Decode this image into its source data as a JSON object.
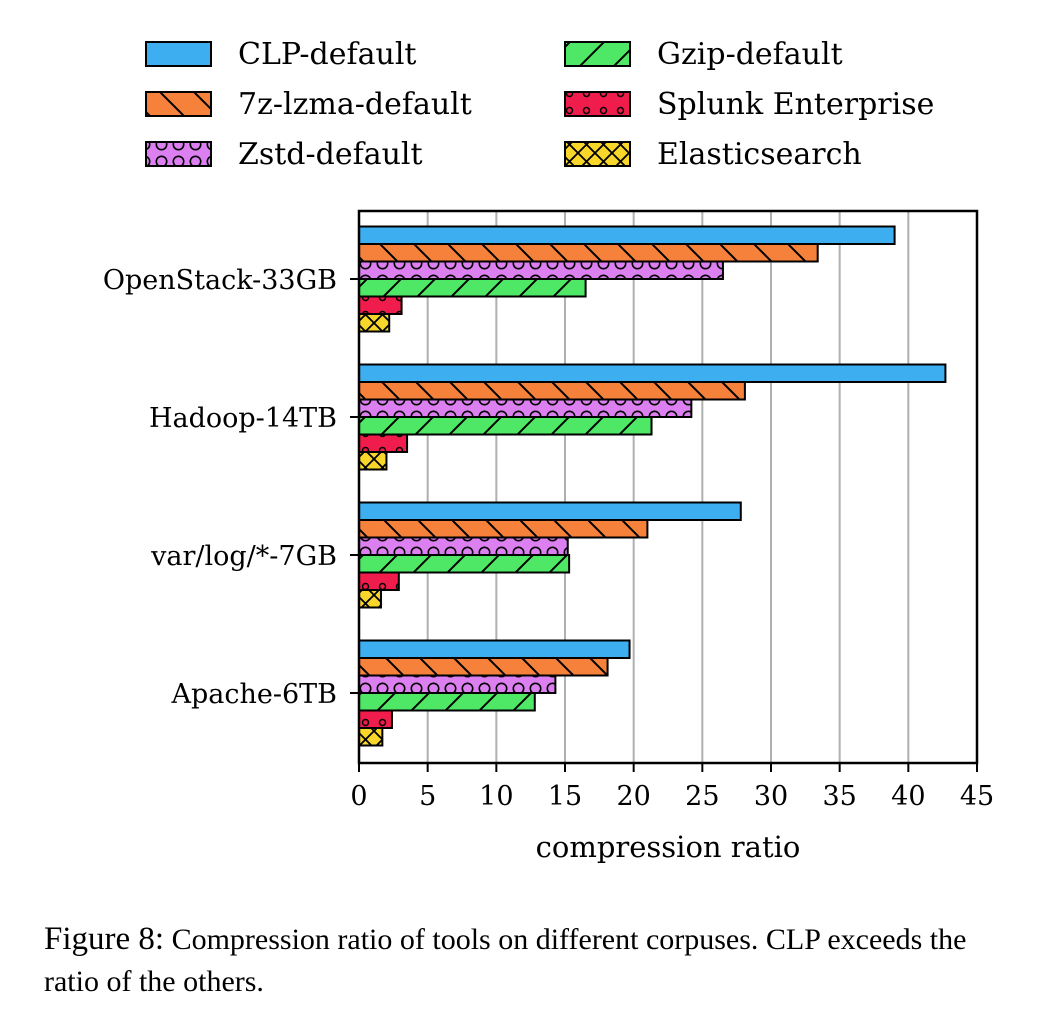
{
  "chart_data": {
    "type": "bar",
    "orientation": "horizontal",
    "categories": [
      "OpenStack-33GB",
      "Hadoop-14TB",
      "var/log/*-7GB",
      "Apache-6TB"
    ],
    "series": [
      {
        "name": "CLP-default",
        "color": "#3daff0",
        "pattern": "none",
        "values": [
          39.0,
          42.7,
          27.8,
          19.7
        ]
      },
      {
        "name": "7z-lzma-default",
        "color": "#f5813a",
        "pattern": "backslash",
        "values": [
          33.4,
          28.1,
          21.0,
          18.1
        ]
      },
      {
        "name": "Zstd-default",
        "color": "#dc7ff0",
        "pattern": "circles",
        "values": [
          26.5,
          24.2,
          15.2,
          14.3
        ]
      },
      {
        "name": "Gzip-default",
        "color": "#4fe866",
        "pattern": "slash",
        "values": [
          16.5,
          21.3,
          15.3,
          12.8
        ]
      },
      {
        "name": "Splunk Enterprise",
        "color": "#f01c4c",
        "pattern": "dots",
        "values": [
          3.1,
          3.5,
          2.9,
          2.4
        ]
      },
      {
        "name": "Elasticsearch",
        "color": "#f8d62a",
        "pattern": "crosshatch",
        "values": [
          2.2,
          2.0,
          1.6,
          1.7
        ]
      }
    ],
    "xlabel": "compression ratio",
    "ylabel": "",
    "xlim": [
      0,
      45
    ],
    "xticks": [
      0,
      5,
      10,
      15,
      20,
      25,
      30,
      35,
      40,
      45
    ],
    "grid": "vertical",
    "legend": "top"
  },
  "caption": {
    "lead": "Figure 8:",
    "text": "Compression ratio of tools on different corpuses. CLP exceeds the ratio of the others."
  }
}
